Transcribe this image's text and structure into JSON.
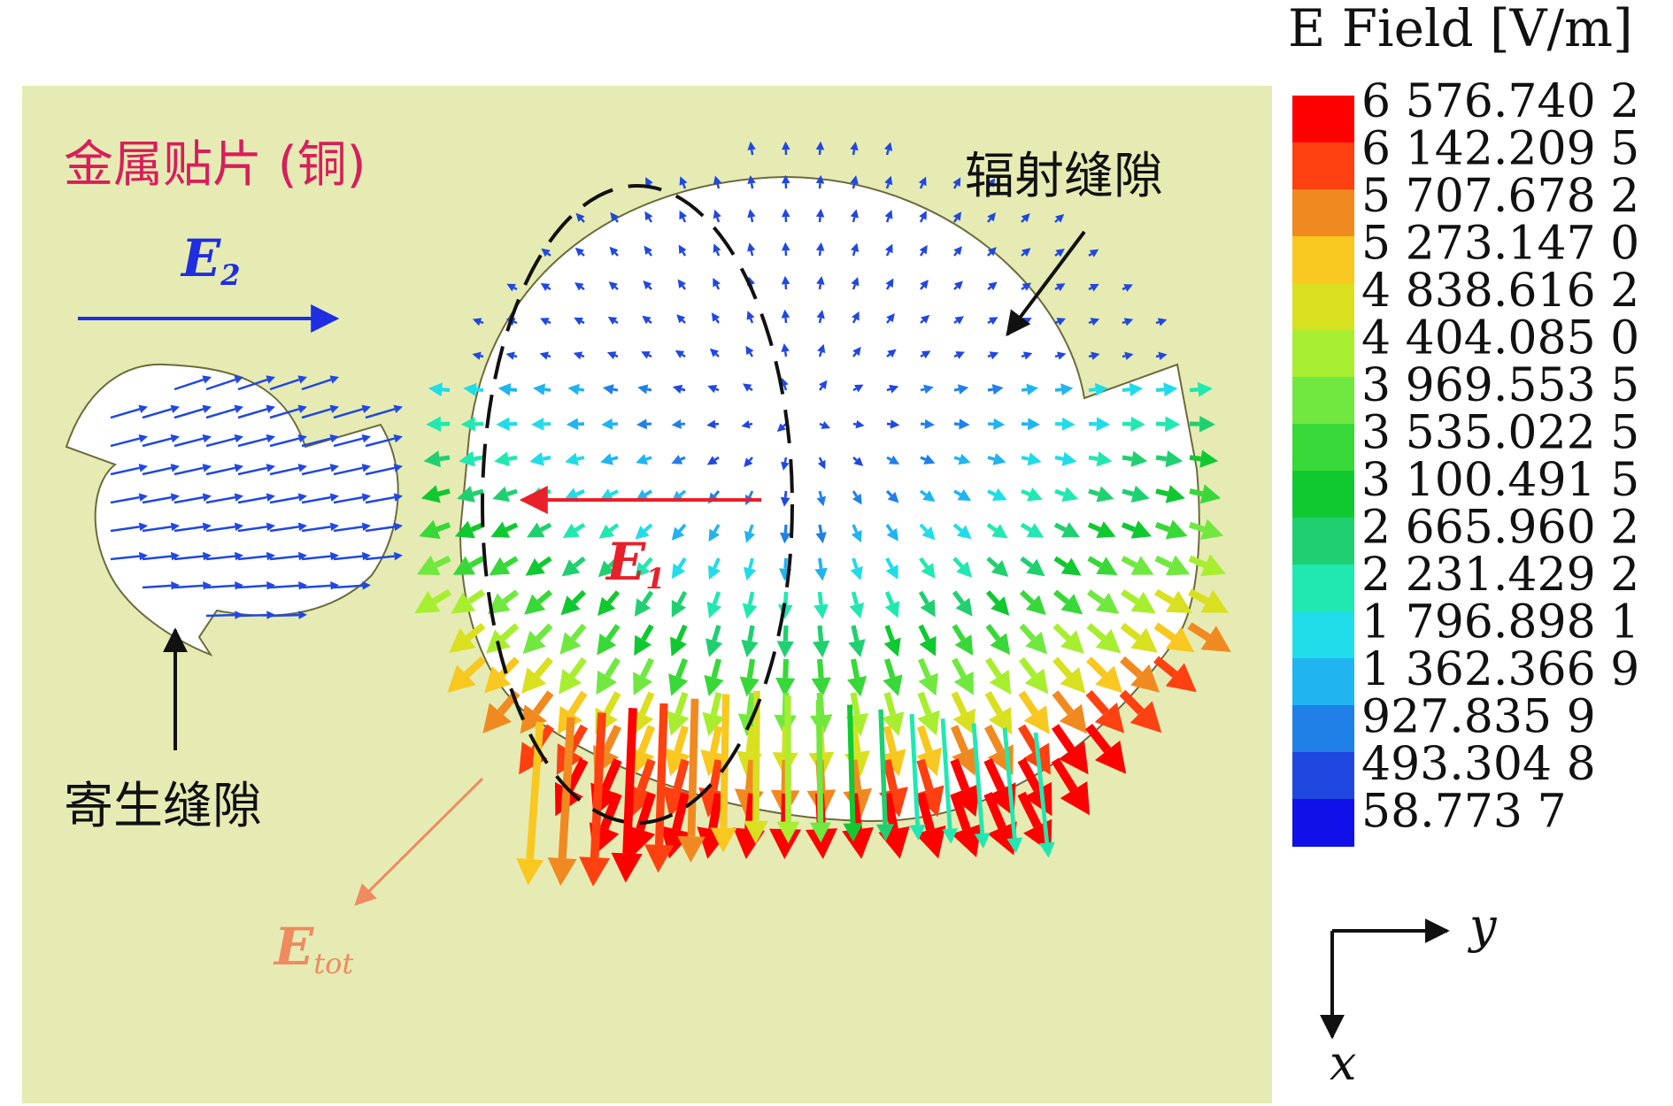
{
  "colors": {
    "background_copper": "#e6ebb4",
    "slot_white": "#ffffff",
    "outline": "#6b6b3c",
    "patch_label": "#d81e5b",
    "e1": "#e8202a",
    "e2": "#1e2ee0",
    "etot": "#f08a60",
    "black": "#111111",
    "colorbar": [
      "#ff0000",
      "#ff4010",
      "#f08a20",
      "#f8c820",
      "#d8e020",
      "#a8ee30",
      "#70e840",
      "#38d838",
      "#10c830",
      "#20d070",
      "#20e8b0",
      "#20dce8",
      "#20b4f0",
      "#2080e8",
      "#2048e0",
      "#1010e8"
    ]
  },
  "labels": {
    "patch": "金属贴片 (铜)",
    "radiating_slot": "辐射缝隙",
    "parasitic_slot": "寄生缝隙",
    "e2_main": "E",
    "e2_sub": "2",
    "e1_main": "E",
    "e1_sub": "1",
    "etot_main": "E",
    "etot_sub": "tot"
  },
  "legend": {
    "title": "E Field [V/m]",
    "values": [
      "6 576.740 2",
      "6 142.209 5",
      "5 707.678 2",
      "5 273.147 0",
      "4 838.616 2",
      "4 404.085 0",
      "3 969.553 5",
      "3 535.022 5",
      "3 100.491 5",
      "2 665.960 2",
      "2 231.429 2",
      "1 796.898 1",
      "1 362.366 9",
      "927.835 9",
      "493.304 8",
      "58.773 7"
    ]
  },
  "axes": {
    "y_label": "y",
    "x_label": "x"
  }
}
